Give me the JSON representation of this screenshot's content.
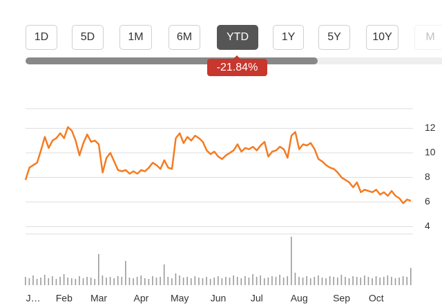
{
  "controls": {
    "ranges": [
      "1D",
      "5D",
      "1M",
      "6M",
      "YTD",
      "1Y",
      "5Y",
      "10Y",
      "M"
    ],
    "selected": "YTD"
  },
  "change_label": "-21.84%",
  "chart_data": [
    {
      "type": "line",
      "color": "#f47b20",
      "grid": true,
      "categories": [
        null,
        null,
        "J…",
        null,
        null,
        null,
        null,
        null,
        null,
        null,
        "Feb",
        null,
        null,
        null,
        null,
        null,
        null,
        null,
        null,
        "Mar",
        null,
        null,
        null,
        null,
        null,
        null,
        null,
        null,
        null,
        null,
        "Apr",
        null,
        null,
        null,
        null,
        null,
        null,
        null,
        null,
        null,
        "May",
        null,
        null,
        null,
        null,
        null,
        null,
        null,
        null,
        null,
        "Jun",
        null,
        null,
        null,
        null,
        null,
        null,
        null,
        null,
        null,
        "Jul",
        null,
        null,
        null,
        null,
        null,
        null,
        null,
        null,
        null,
        null,
        "Aug",
        null,
        null,
        null,
        null,
        null,
        null,
        null,
        null,
        null,
        null,
        "Sep",
        null,
        null,
        null,
        null,
        null,
        null,
        null,
        null,
        "Oct",
        null,
        null,
        null,
        null,
        null,
        null,
        null,
        null,
        null
      ],
      "values": [
        7.8,
        8.8,
        9.0,
        9.2,
        10.2,
        11.3,
        10.4,
        11.0,
        11.2,
        11.6,
        11.2,
        12.1,
        11.8,
        11.0,
        9.8,
        10.8,
        11.5,
        10.9,
        11.0,
        10.7,
        8.4,
        9.6,
        10.0,
        9.3,
        8.6,
        8.5,
        8.6,
        8.3,
        8.5,
        8.3,
        8.6,
        8.5,
        8.8,
        9.2,
        9.0,
        8.7,
        9.4,
        8.8,
        8.7,
        11.2,
        11.6,
        10.8,
        11.3,
        11.0,
        11.4,
        11.2,
        10.9,
        10.2,
        9.9,
        10.1,
        9.7,
        9.5,
        9.8,
        10.0,
        10.2,
        10.7,
        10.1,
        10.4,
        10.3,
        10.5,
        10.2,
        10.6,
        10.9,
        9.7,
        10.1,
        10.2,
        10.5,
        10.3,
        9.6,
        11.4,
        11.7,
        10.3,
        10.7,
        10.6,
        10.8,
        10.3,
        9.5,
        9.3,
        9.0,
        8.8,
        8.7,
        8.4,
        8.0,
        7.8,
        7.6,
        7.2,
        7.6,
        6.8,
        7.0,
        6.9,
        6.8,
        7.0,
        6.6,
        6.8,
        6.5,
        6.9,
        6.5,
        6.3,
        5.9,
        6.2,
        6.1
      ],
      "ylim": [
        3.4,
        13.6
      ],
      "yticks": [
        4,
        6,
        8,
        10,
        12
      ]
    },
    {
      "type": "bar",
      "color": "#9a9a9a",
      "values": [
        12,
        10,
        14,
        9,
        11,
        15,
        10,
        13,
        9,
        12,
        16,
        11,
        10,
        9,
        13,
        10,
        12,
        11,
        9,
        45,
        14,
        11,
        12,
        10,
        13,
        12,
        35,
        11,
        10,
        12,
        14,
        10,
        9,
        13,
        11,
        12,
        30,
        12,
        10,
        17,
        14,
        11,
        12,
        10,
        13,
        11,
        10,
        12,
        9,
        11,
        13,
        10,
        12,
        11,
        14,
        12,
        10,
        13,
        11,
        16,
        12,
        14,
        10,
        11,
        13,
        12,
        15,
        11,
        13,
        70,
        18,
        12,
        11,
        13,
        10,
        12,
        14,
        11,
        10,
        13,
        12,
        11,
        15,
        12,
        10,
        13,
        12,
        11,
        14,
        12,
        10,
        13,
        11,
        12,
        14,
        12,
        10,
        11,
        13,
        12,
        25
      ],
      "ylim": [
        0,
        80
      ]
    }
  ]
}
